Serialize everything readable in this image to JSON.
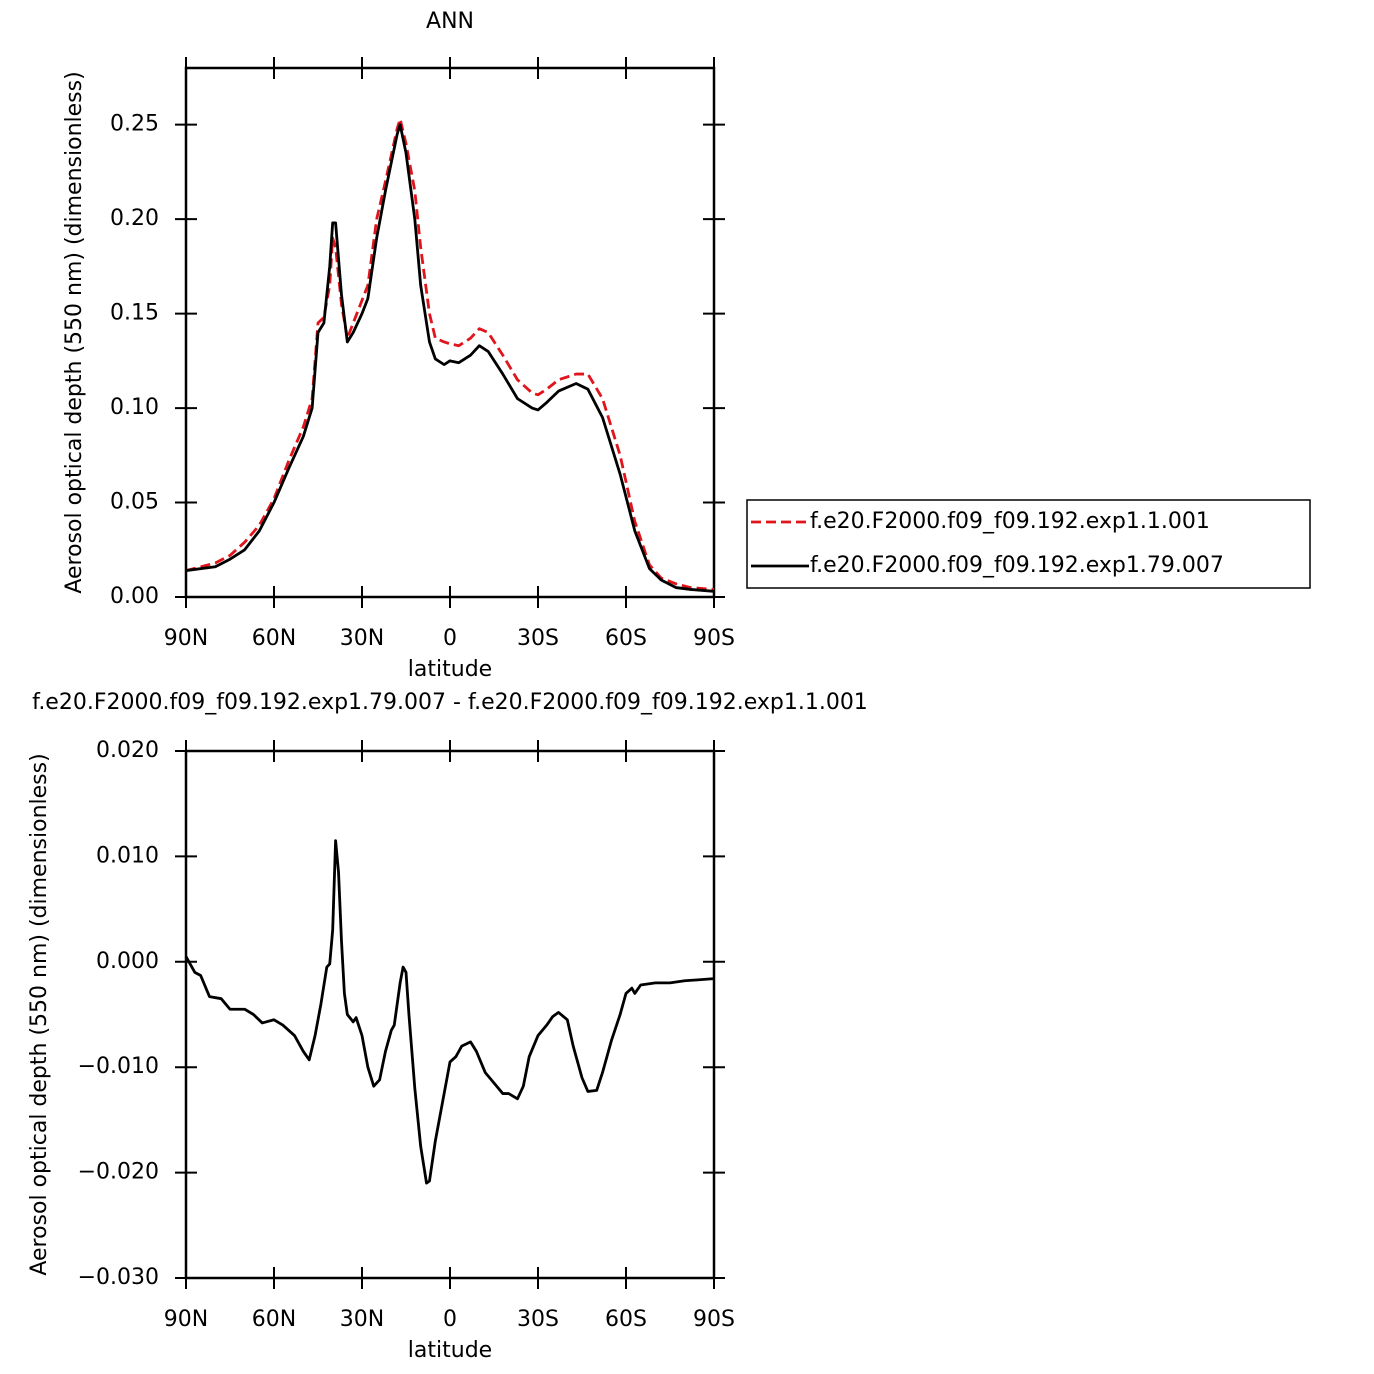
{
  "chart_data": [
    {
      "type": "line",
      "title": "ANN",
      "xlabel": "latitude",
      "ylabel": "Aerosol optical depth (550 nm) (dimensionless)",
      "xlim": [
        90,
        -90
      ],
      "xticks": [
        {
          "value": 90,
          "label": "90N"
        },
        {
          "value": 60,
          "label": "60N"
        },
        {
          "value": 30,
          "label": "30N"
        },
        0,
        {
          "value": -30,
          "label": "30S"
        },
        {
          "value": -60,
          "label": "60S"
        },
        {
          "value": -90,
          "label": "90S"
        }
      ],
      "ylim": [
        0,
        0.28
      ],
      "yticks": [
        {
          "value": 0,
          "label": "0.00"
        },
        0.05,
        {
          "value": 0.1,
          "label": "0.10"
        },
        0.15,
        {
          "value": 0.2,
          "label": "0.20"
        },
        0.25
      ],
      "legend": "right",
      "x": [
        90,
        80,
        75,
        70,
        65,
        60,
        55,
        50,
        47,
        45,
        43,
        41,
        40,
        39,
        37,
        35,
        33,
        30,
        28,
        25,
        22,
        18,
        17,
        15,
        12,
        10,
        7,
        5,
        2,
        0,
        -3,
        -7,
        -10,
        -13,
        -18,
        -23,
        -28,
        -30,
        -33,
        -37,
        -43,
        -47,
        -52,
        -58,
        -63,
        -68,
        -72,
        -77,
        -82,
        -90
      ],
      "series": [
        {
          "name": "f.e20.F2000.f09_f09.192.exp1.1.001",
          "color": "#e0141a",
          "dash": true,
          "values": [
            0.014,
            0.018,
            0.022,
            0.029,
            0.038,
            0.052,
            0.072,
            0.09,
            0.105,
            0.145,
            0.148,
            0.165,
            0.19,
            0.185,
            0.155,
            0.137,
            0.145,
            0.157,
            0.165,
            0.2,
            0.22,
            0.248,
            0.253,
            0.24,
            0.215,
            0.185,
            0.15,
            0.137,
            0.135,
            0.134,
            0.133,
            0.137,
            0.142,
            0.14,
            0.128,
            0.115,
            0.108,
            0.107,
            0.11,
            0.115,
            0.118,
            0.118,
            0.105,
            0.075,
            0.04,
            0.017,
            0.01,
            0.007,
            0.005,
            0.004
          ]
        },
        {
          "name": "f.e20.F2000.f09_f09.192.exp1.79.007",
          "color": "#000000",
          "dash": false,
          "values": [
            0.014,
            0.016,
            0.02,
            0.025,
            0.035,
            0.05,
            0.068,
            0.085,
            0.1,
            0.14,
            0.145,
            0.175,
            0.198,
            0.198,
            0.16,
            0.135,
            0.14,
            0.15,
            0.158,
            0.19,
            0.215,
            0.245,
            0.25,
            0.235,
            0.2,
            0.165,
            0.135,
            0.126,
            0.123,
            0.125,
            0.124,
            0.128,
            0.133,
            0.13,
            0.118,
            0.105,
            0.1,
            0.099,
            0.103,
            0.109,
            0.113,
            0.11,
            0.095,
            0.065,
            0.035,
            0.015,
            0.009,
            0.005,
            0.004,
            0.003
          ]
        }
      ]
    },
    {
      "type": "line",
      "title": "f.e20.F2000.f09_f09.192.exp1.79.007 - f.e20.F2000.f09_f09.192.exp1.1.001",
      "xlabel": "latitude",
      "ylabel": "Aerosol optical depth (550 nm) (dimensionless)",
      "xlim": [
        90,
        -90
      ],
      "xticks": [
        {
          "value": 90,
          "label": "90N"
        },
        {
          "value": 60,
          "label": "60N"
        },
        {
          "value": 30,
          "label": "30N"
        },
        0,
        {
          "value": -30,
          "label": "30S"
        },
        {
          "value": -60,
          "label": "60S"
        },
        {
          "value": -90,
          "label": "90S"
        }
      ],
      "ylim": [
        -0.03,
        0.02
      ],
      "yticks": [
        {
          "value": -0.03,
          "label": "−0.030"
        },
        {
          "value": -0.02,
          "label": "−0.020"
        },
        {
          "value": -0.01,
          "label": "−0.010"
        },
        {
          "value": 0,
          "label": "0.000"
        },
        {
          "value": 0.01,
          "label": "0.010"
        },
        {
          "value": 0.02,
          "label": "0.020"
        }
      ],
      "x": [
        90,
        87,
        85,
        82,
        78,
        75,
        70,
        67,
        64,
        60,
        57,
        53,
        50,
        48,
        46,
        44,
        42,
        41,
        40,
        39,
        38,
        37,
        36,
        35,
        33,
        32,
        30,
        28,
        26,
        24,
        22,
        20,
        19,
        17,
        16,
        15,
        14,
        12,
        10,
        8,
        7,
        5,
        3,
        1,
        0,
        -2,
        -4,
        -7,
        -9,
        -12,
        -15,
        -18,
        -20,
        -23,
        -25,
        -27,
        -30,
        -33,
        -35,
        -37,
        -40,
        -42,
        -45,
        -47,
        -50,
        -52,
        -55,
        -58,
        -60,
        -62,
        -63,
        -65,
        -70,
        -75,
        -80,
        -85,
        -90
      ],
      "series": [
        {
          "color": "#000000",
          "dash": false,
          "values": [
            0.0005,
            -0.001,
            -0.0013,
            -0.0033,
            -0.0035,
            -0.0045,
            -0.0045,
            -0.005,
            -0.0058,
            -0.0055,
            -0.006,
            -0.007,
            -0.0085,
            -0.0093,
            -0.007,
            -0.004,
            -0.0005,
            -0.0002,
            0.003,
            0.0115,
            0.0085,
            0.002,
            -0.003,
            -0.005,
            -0.0057,
            -0.0053,
            -0.007,
            -0.01,
            -0.0118,
            -0.0112,
            -0.0085,
            -0.0065,
            -0.006,
            -0.002,
            -0.0005,
            -0.001,
            -0.005,
            -0.012,
            -0.0175,
            -0.021,
            -0.0208,
            -0.017,
            -0.014,
            -0.011,
            -0.0095,
            -0.009,
            -0.008,
            -0.0076,
            -0.0085,
            -0.0105,
            -0.0115,
            -0.0125,
            -0.0125,
            -0.013,
            -0.0118,
            -0.009,
            -0.007,
            -0.006,
            -0.0052,
            -0.0048,
            -0.0055,
            -0.008,
            -0.011,
            -0.0123,
            -0.0122,
            -0.0105,
            -0.0075,
            -0.005,
            -0.003,
            -0.0025,
            -0.003,
            -0.0022,
            -0.002,
            -0.002,
            -0.0018,
            -0.0017,
            -0.0016
          ]
        }
      ]
    }
  ]
}
